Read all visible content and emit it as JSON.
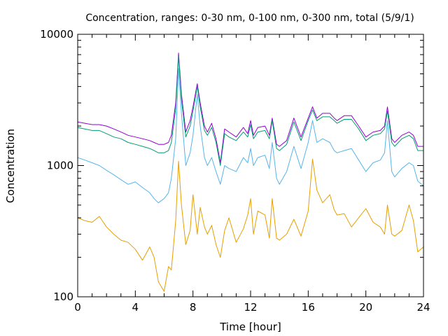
{
  "chart_data": {
    "type": "line",
    "title": "Concentration, ranges: 0-30 nm, 0-100 nm, 0-300 nm, total (5/9/1)",
    "xlabel": "Time [hour]",
    "ylabel": "Concentration",
    "xlim": [
      0,
      24
    ],
    "ylim": [
      100,
      10000
    ],
    "yscale": "log",
    "grid": false,
    "x_ticks": [
      "0",
      "4",
      "8",
      "12",
      "16",
      "20",
      "24"
    ],
    "y_ticks": [
      "100",
      "1000",
      "10000"
    ],
    "y_tick_values": [
      100,
      1000,
      10000
    ],
    "x_tick_values": [
      0,
      4,
      8,
      12,
      16,
      20,
      24
    ],
    "x_minor_step": 1,
    "colors": {
      "total": "#9400d3",
      "range_0_300": "#009e73",
      "range_0_100": "#56b4e9",
      "range_0_30": "#e69f00",
      "axis": "#000000"
    },
    "series": [
      {
        "key": "total",
        "x": [
          0,
          0.5,
          1,
          1.5,
          2,
          2.5,
          3,
          3.5,
          4,
          4.5,
          5,
          5.3,
          5.6,
          6,
          6.3,
          6.5,
          6.8,
          7,
          7.2,
          7.5,
          7.8,
          8,
          8.3,
          8.5,
          8.8,
          9,
          9.3,
          9.6,
          9.9,
          10.2,
          10.5,
          11,
          11.5,
          11.8,
          12,
          12.2,
          12.5,
          13,
          13.3,
          13.5,
          13.8,
          14,
          14.5,
          15,
          15.5,
          16,
          16.3,
          16.6,
          17,
          17.5,
          17.8,
          18,
          18.5,
          19,
          19.5,
          20,
          20.5,
          21,
          21.3,
          21.5,
          21.8,
          22,
          22.5,
          23,
          23.3,
          23.6,
          24
        ],
        "y": [
          2150,
          2100,
          2050,
          2050,
          2000,
          1900,
          1800,
          1700,
          1650,
          1600,
          1550,
          1500,
          1450,
          1450,
          1500,
          1700,
          3000,
          7200,
          3500,
          1800,
          2200,
          2800,
          4200,
          3000,
          2000,
          1800,
          2100,
          1600,
          1050,
          1900,
          1800,
          1650,
          1950,
          1750,
          2200,
          1700,
          1950,
          2000,
          1700,
          2300,
          1450,
          1400,
          1550,
          2300,
          1650,
          2300,
          2800,
          2300,
          2500,
          2500,
          2300,
          2200,
          2400,
          2400,
          2000,
          1650,
          1800,
          1850,
          2000,
          2800,
          1600,
          1500,
          1700,
          1800,
          1700,
          1400,
          1400
        ]
      },
      {
        "key": "range_0_300",
        "x": [
          0,
          0.5,
          1,
          1.5,
          2,
          2.5,
          3,
          3.5,
          4,
          4.5,
          5,
          5.3,
          5.6,
          6,
          6.3,
          6.5,
          6.8,
          7,
          7.2,
          7.5,
          7.8,
          8,
          8.3,
          8.5,
          8.8,
          9,
          9.3,
          9.6,
          9.9,
          10.2,
          10.5,
          11,
          11.5,
          11.8,
          12,
          12.2,
          12.5,
          13,
          13.3,
          13.5,
          13.8,
          14,
          14.5,
          15,
          15.5,
          16,
          16.3,
          16.6,
          17,
          17.5,
          17.8,
          18,
          18.5,
          19,
          19.5,
          20,
          20.5,
          21,
          21.3,
          21.5,
          21.8,
          22,
          22.5,
          23,
          23.3,
          23.6,
          24
        ],
        "y": [
          1950,
          1900,
          1850,
          1850,
          1750,
          1650,
          1600,
          1500,
          1450,
          1400,
          1350,
          1300,
          1250,
          1250,
          1300,
          1500,
          2700,
          6800,
          3200,
          1650,
          2000,
          2600,
          4000,
          2800,
          1850,
          1700,
          1950,
          1500,
          1000,
          1750,
          1650,
          1550,
          1800,
          1650,
          2050,
          1600,
          1800,
          1850,
          1600,
          2200,
          1350,
          1300,
          1450,
          2150,
          1550,
          2200,
          2650,
          2200,
          2350,
          2350,
          2200,
          2100,
          2250,
          2250,
          1900,
          1550,
          1700,
          1750,
          1900,
          2600,
          1500,
          1400,
          1600,
          1700,
          1600,
          1300,
          1300
        ]
      },
      {
        "key": "range_0_100",
        "x": [
          0,
          0.5,
          1,
          1.5,
          2,
          2.5,
          3,
          3.5,
          4,
          4.5,
          5,
          5.3,
          5.6,
          6,
          6.3,
          6.5,
          6.8,
          7,
          7.2,
          7.5,
          7.8,
          8,
          8.3,
          8.5,
          8.8,
          9,
          9.3,
          9.6,
          9.9,
          10.2,
          10.5,
          11,
          11.5,
          11.8,
          12,
          12.2,
          12.5,
          13,
          13.3,
          13.5,
          13.8,
          14,
          14.5,
          15,
          15.5,
          16,
          16.3,
          16.6,
          17,
          17.5,
          17.8,
          18,
          18.5,
          19,
          19.5,
          20,
          20.5,
          21,
          21.3,
          21.5,
          21.8,
          22,
          22.5,
          23,
          23.3,
          23.6,
          24
        ],
        "y": [
          1150,
          1100,
          1050,
          1000,
          920,
          850,
          780,
          720,
          750,
          680,
          620,
          560,
          520,
          560,
          620,
          800,
          1600,
          5500,
          2500,
          1000,
          1250,
          1700,
          3500,
          2000,
          1150,
          1000,
          1150,
          900,
          720,
          1000,
          950,
          900,
          1150,
          1050,
          1350,
          1000,
          1150,
          1200,
          950,
          1500,
          800,
          720,
          900,
          1400,
          950,
          1500,
          2200,
          1500,
          1600,
          1500,
          1300,
          1250,
          1300,
          1350,
          1100,
          900,
          1050,
          1100,
          1250,
          2200,
          900,
          820,
          950,
          1050,
          1000,
          760,
          700
        ]
      },
      {
        "key": "range_0_30",
        "x": [
          0,
          0.5,
          1,
          1.5,
          2,
          2.5,
          3,
          3.5,
          4,
          4.5,
          5,
          5.3,
          5.6,
          6,
          6.3,
          6.5,
          6.8,
          7,
          7.2,
          7.5,
          7.8,
          8,
          8.3,
          8.5,
          8.8,
          9,
          9.3,
          9.6,
          9.9,
          10.2,
          10.5,
          11,
          11.5,
          11.8,
          12,
          12.2,
          12.5,
          13,
          13.3,
          13.5,
          13.8,
          14,
          14.5,
          15,
          15.5,
          16,
          16.3,
          16.6,
          17,
          17.5,
          17.8,
          18,
          18.5,
          19,
          19.5,
          20,
          20.5,
          21,
          21.3,
          21.5,
          21.8,
          22,
          22.5,
          23,
          23.3,
          23.6,
          24
        ],
        "y": [
          400,
          380,
          370,
          410,
          340,
          300,
          270,
          260,
          230,
          190,
          240,
          200,
          130,
          110,
          170,
          160,
          380,
          1080,
          500,
          250,
          320,
          600,
          300,
          480,
          340,
          300,
          350,
          250,
          200,
          320,
          400,
          260,
          330,
          420,
          560,
          300,
          450,
          420,
          280,
          560,
          280,
          270,
          300,
          390,
          290,
          450,
          1120,
          650,
          520,
          600,
          460,
          420,
          430,
          340,
          400,
          470,
          370,
          340,
          300,
          500,
          300,
          290,
          320,
          500,
          380,
          220,
          240
        ]
      }
    ]
  }
}
